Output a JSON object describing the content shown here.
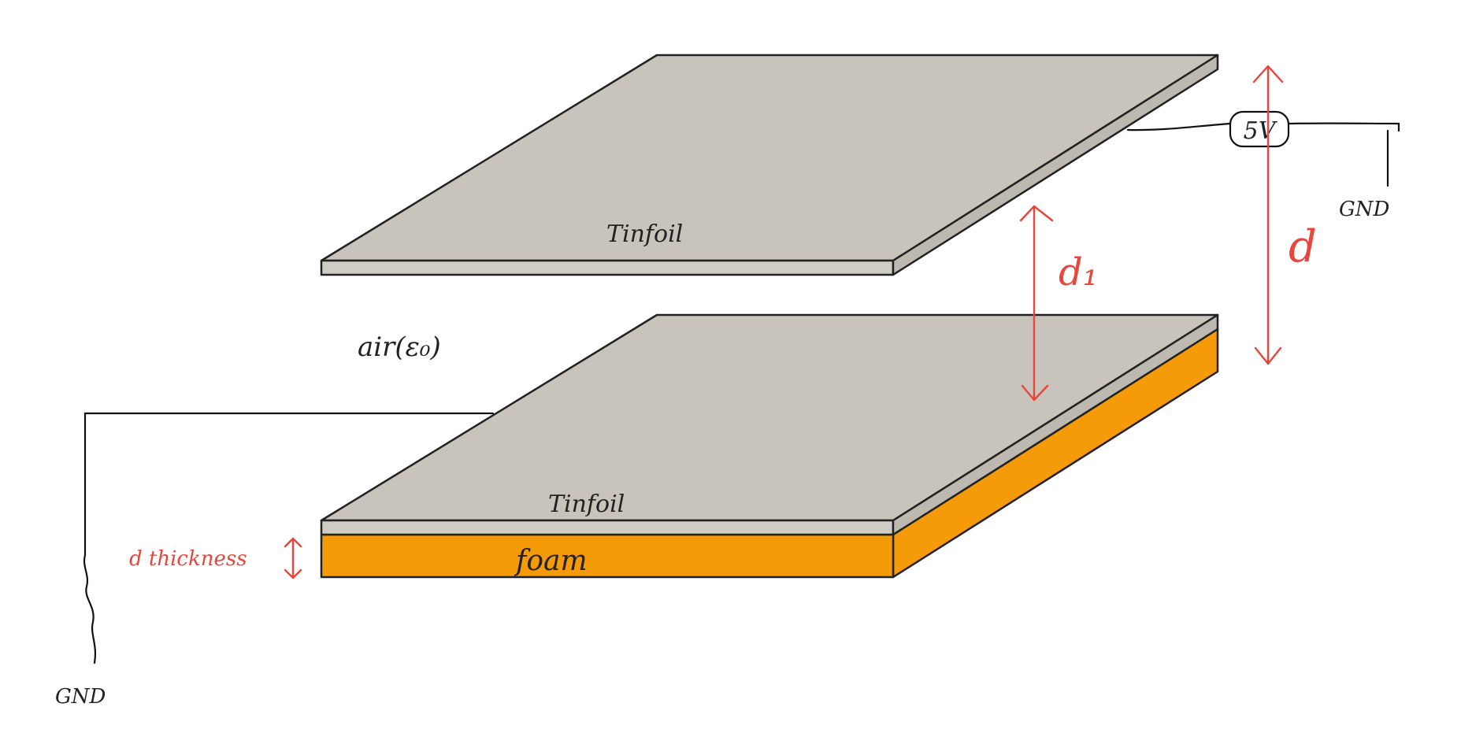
{
  "labels": {
    "top_plate": "Tinfoil",
    "bottom_plate": "Tinfoil",
    "foam": "foam",
    "air": "air(ε₀)",
    "voltage": "5V",
    "gnd_right": "GND",
    "gnd_left": "GND",
    "d1": "d₁",
    "d": "d",
    "thickness": "d thickness"
  },
  "colors": {
    "tinfoil": "#c8c4bb",
    "foam": "#f59a08",
    "dimension": "#e8453c",
    "wire": "#111111"
  }
}
